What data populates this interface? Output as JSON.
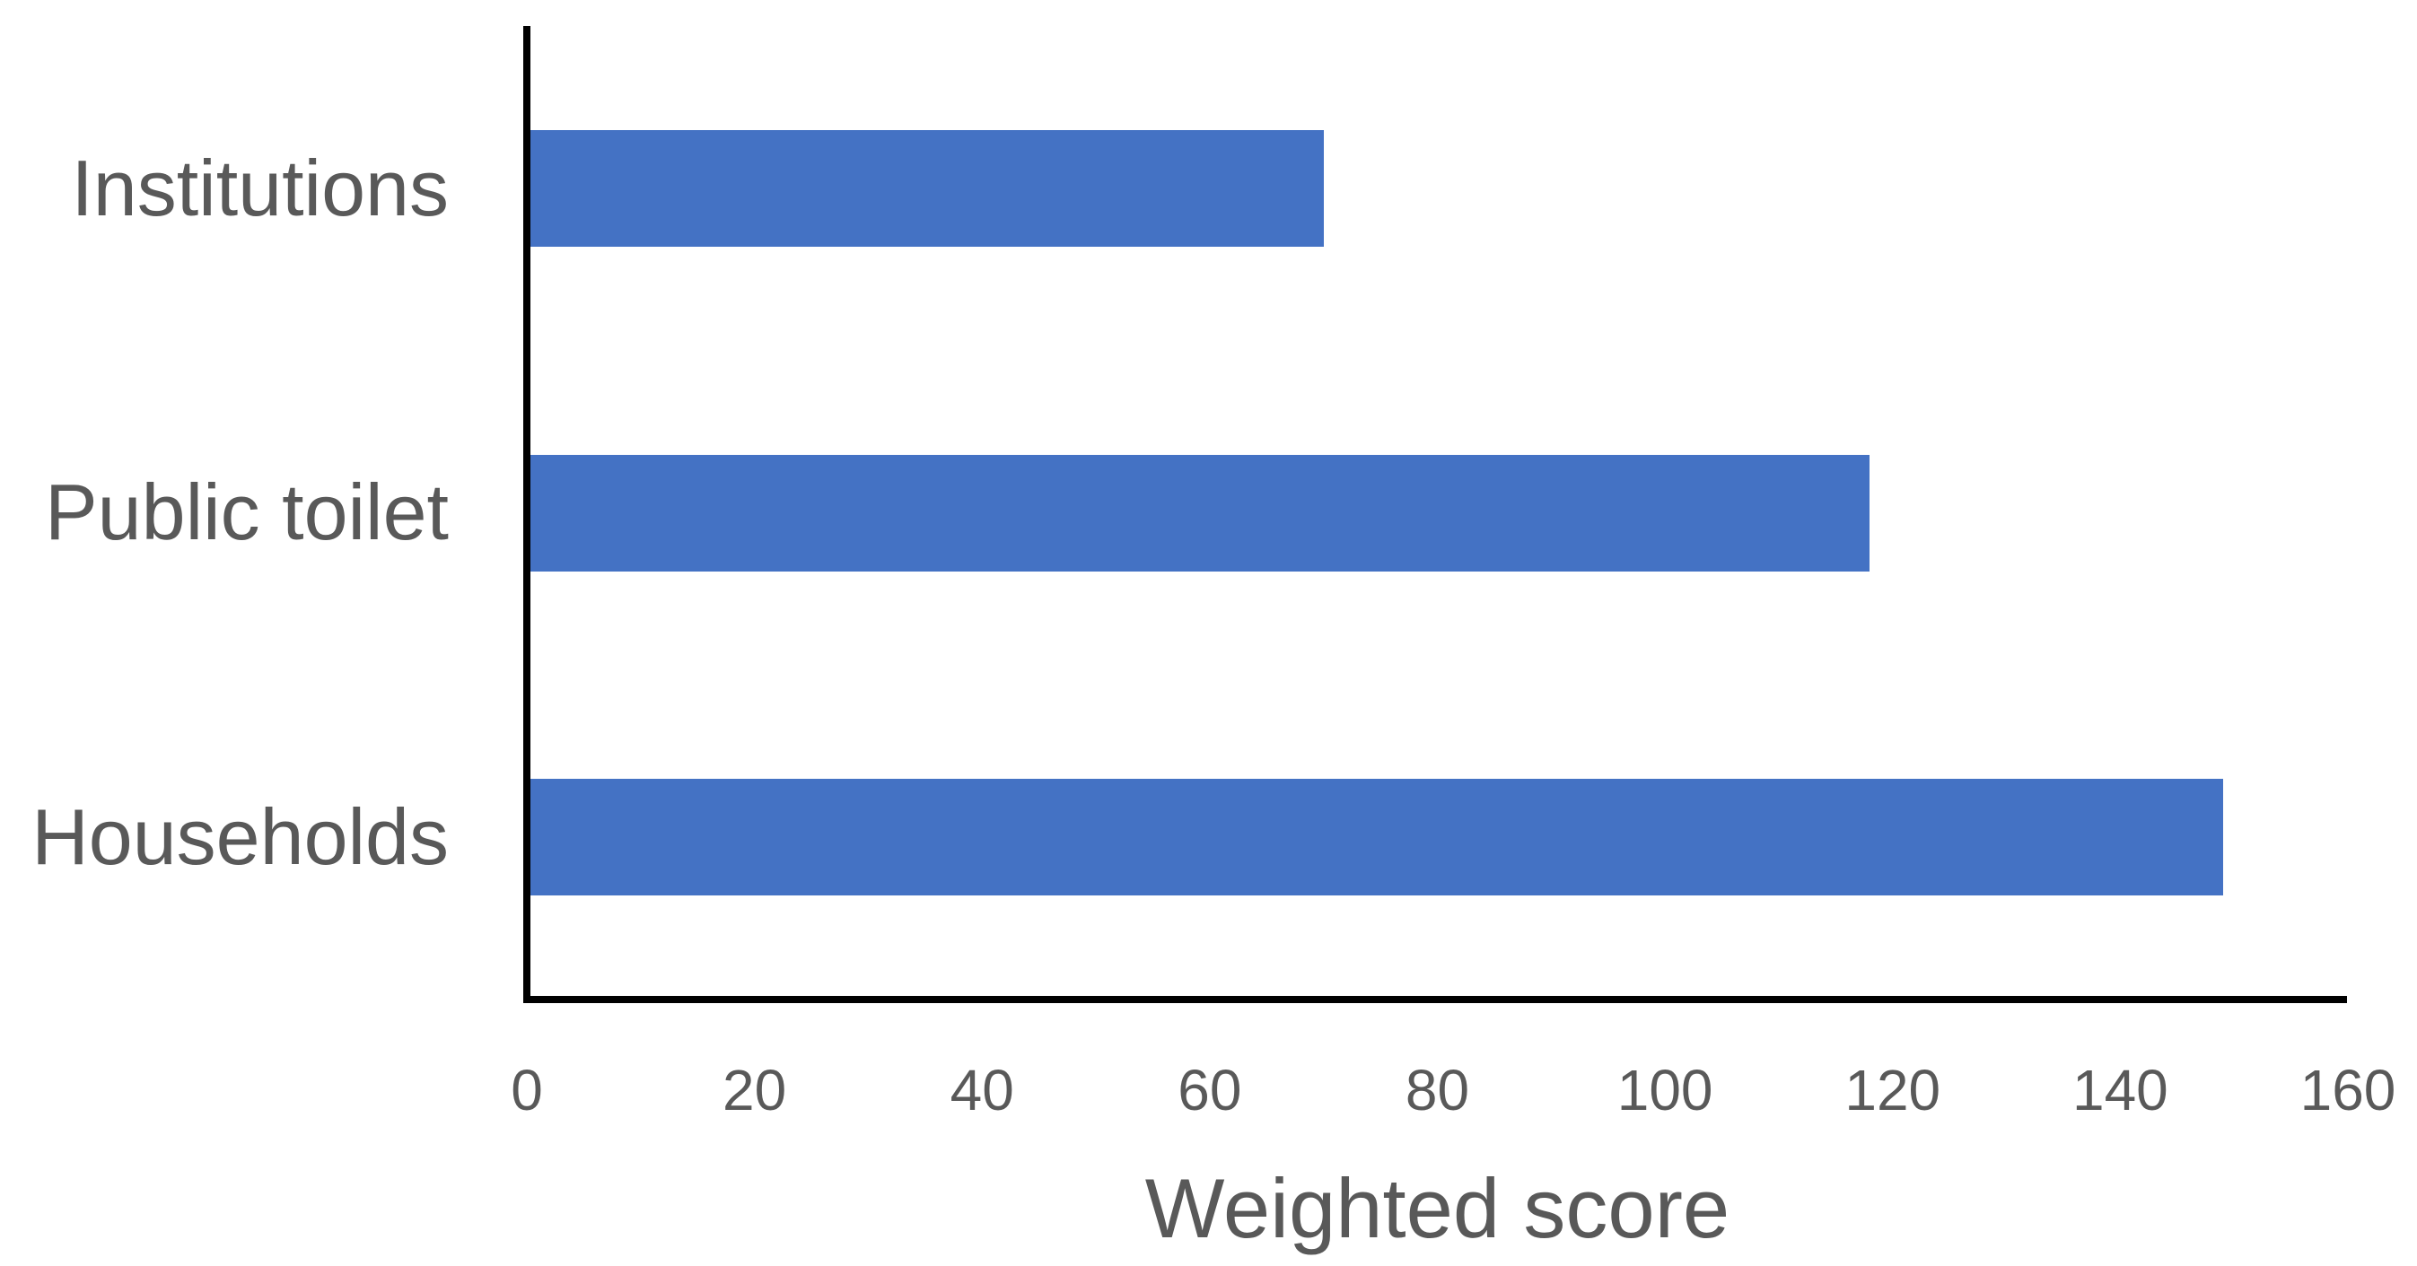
{
  "chart_data": {
    "type": "bar",
    "orientation": "horizontal",
    "title": "",
    "xlabel": "Weighted score",
    "ylabel": "",
    "categories": [
      "Institutions",
      "Public toilet",
      "Households"
    ],
    "values": [
      70,
      118,
      149
    ],
    "xlim": [
      0,
      160
    ],
    "xticks": [
      0,
      20,
      40,
      60,
      80,
      100,
      120,
      140,
      160
    ],
    "grid": false,
    "legend": false,
    "colors": {
      "bar": "#4472C4",
      "text": "#595959",
      "axis": "#000000",
      "background": "#FFFFFF"
    }
  }
}
